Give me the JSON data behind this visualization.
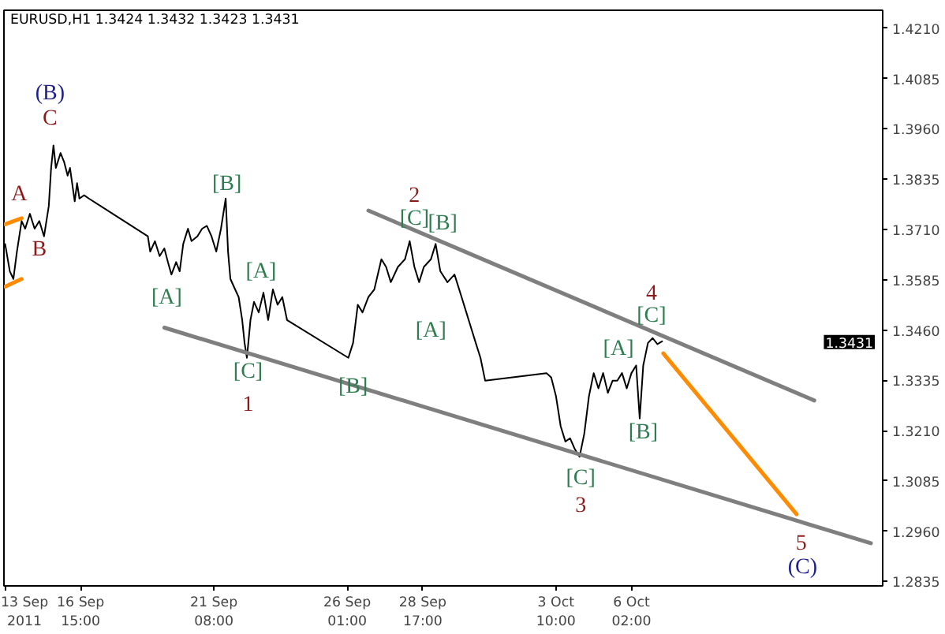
{
  "chart_data": {
    "type": "line",
    "title": "EURUSD,H1  1.3424 1.3432 1.3423 1.3431",
    "xlim": [
      "2011-09-13T22:00",
      "2011-10-14T23:00"
    ],
    "ylim": [
      1.2824,
      1.4255
    ],
    "xticks": [
      {
        "value": "2011-09-13T23:00",
        "label": "13 Sep 2011"
      },
      {
        "value": "2011-09-16T15:00",
        "label": "16 Sep 15:00"
      },
      {
        "value": "2011-09-21T08:00",
        "label": "21 Sep 08:00"
      },
      {
        "value": "2011-09-26T01:00",
        "label": "26 Sep 01:00"
      },
      {
        "value": "2011-09-28T17:00",
        "label": "28 Sep 17:00"
      },
      {
        "value": "2011-10-03T10:00",
        "label": "3 Oct 10:00"
      },
      {
        "value": "2011-10-06T02:00",
        "label": "6 Oct 02:00"
      }
    ],
    "yticks": [
      {
        "value": 1.421,
        "label": "1.4210"
      },
      {
        "value": 1.4085,
        "label": "1.4085"
      },
      {
        "value": 1.396,
        "label": "1.3960"
      },
      {
        "value": 1.3835,
        "label": "1.3835"
      },
      {
        "value": 1.371,
        "label": "1.3710"
      },
      {
        "value": 1.3585,
        "label": "1.3585"
      },
      {
        "value": 1.346,
        "label": "1.3460"
      },
      {
        "value": 1.3335,
        "label": "1.3335"
      },
      {
        "value": 1.321,
        "label": "1.3210"
      },
      {
        "value": 1.3085,
        "label": "1.3085"
      },
      {
        "value": 1.296,
        "label": "1.2960"
      },
      {
        "value": 1.2835,
        "label": "1.2835"
      }
    ],
    "series": [
      {
        "color": "#000000",
        "x": [
          "2011-09-13T23:00",
          "2011-09-14T03:00",
          "2011-09-14T06:00",
          "2011-09-14T09:00",
          "2011-09-14T13:00",
          "2011-09-14T16:00",
          "2011-09-14T20:00",
          "2011-09-15T00:00",
          "2011-09-15T04:00",
          "2011-09-15T08:00",
          "2011-09-15T12:00",
          "2011-09-15T14:00",
          "2011-09-15T16:00",
          "2011-09-15T18:00",
          "2011-09-15T22:00",
          "2011-09-16T01:00",
          "2011-09-16T04:00",
          "2011-09-16T06:00",
          "2011-09-16T10:00",
          "2011-09-16T12:00",
          "2011-09-16T14:00",
          "2011-09-16T18:00",
          "2011-09-16T22:00",
          "2011-09-19T00:00",
          "2011-09-19T02:00",
          "2011-09-19T06:00",
          "2011-09-19T10:00",
          "2011-09-19T14:00",
          "2011-09-19T17:00",
          "2011-09-19T20:00",
          "2011-09-20T00:00",
          "2011-09-20T03:00",
          "2011-09-20T06:00",
          "2011-09-20T10:00",
          "2011-09-20T13:00",
          "2011-09-20T18:00",
          "2011-09-20T22:00",
          "2011-09-21T02:00",
          "2011-09-21T06:00",
          "2011-09-21T10:00",
          "2011-09-21T14:00",
          "2011-09-21T18:00",
          "2011-09-21T20:00",
          "2011-09-21T22:00",
          "2011-09-22T02:00",
          "2011-09-22T05:00",
          "2011-09-22T08:00",
          "2011-09-22T10:00",
          "2011-09-22T12:00",
          "2011-09-22T15:00",
          "2011-09-22T18:00",
          "2011-09-22T22:00",
          "2011-09-23T02:00",
          "2011-09-23T06:00",
          "2011-09-23T10:00",
          "2011-09-23T14:00",
          "2011-09-23T18:00",
          "2011-09-23T22:00",
          "2011-09-26T02:00",
          "2011-09-26T06:00",
          "2011-09-26T10:00",
          "2011-09-26T14:00",
          "2011-09-26T19:00",
          "2011-09-27T00:00",
          "2011-09-27T06:00",
          "2011-09-27T10:00",
          "2011-09-27T14:00",
          "2011-09-27T20:00",
          "2011-09-28T02:00",
          "2011-09-28T06:00",
          "2011-09-28T10:00",
          "2011-09-28T14:00",
          "2011-09-28T18:00",
          "2011-09-29T00:00",
          "2011-09-29T04:00",
          "2011-09-29T08:00",
          "2011-09-29T14:00",
          "2011-09-29T20:00",
          "2011-09-30T02:00",
          "2011-09-30T06:00",
          "2011-09-30T10:00",
          "2011-09-30T14:00",
          "2011-09-30T18:00",
          "2011-09-30T22:00",
          "2011-10-03T02:00",
          "2011-10-03T06:00",
          "2011-10-03T10:00",
          "2011-10-03T14:00",
          "2011-10-03T18:00",
          "2011-10-03T22:00",
          "2011-10-04T02:00",
          "2011-10-04T06:00",
          "2011-10-04T10:00",
          "2011-10-04T14:00",
          "2011-10-04T18:00",
          "2011-10-04T22:00",
          "2011-10-05T02:00",
          "2011-10-05T06:00",
          "2011-10-05T10:00",
          "2011-10-05T14:00",
          "2011-10-05T18:00",
          "2011-10-05T22:00",
          "2011-10-06T02:00",
          "2011-10-06T06:00",
          "2011-10-06T09:00",
          "2011-10-06T12:00",
          "2011-10-06T16:00",
          "2011-10-06T20:00",
          "2011-10-07T00:00",
          "2011-10-07T04:00"
        ],
        "values": [
          1.3674,
          1.3606,
          1.3587,
          1.3655,
          1.3731,
          1.3712,
          1.3749,
          1.3712,
          1.3731,
          1.3693,
          1.3768,
          1.3863,
          1.3919,
          1.3863,
          1.39,
          1.3878,
          1.3844,
          1.3863,
          1.378,
          1.3825,
          1.3787,
          1.3795,
          1.3787,
          1.3693,
          1.3655,
          1.3681,
          1.3644,
          1.3663,
          1.3629,
          1.3598,
          1.3629,
          1.3606,
          1.3674,
          1.3712,
          1.3681,
          1.3693,
          1.3712,
          1.3719,
          1.3693,
          1.3655,
          1.3712,
          1.3787,
          1.3655,
          1.3587,
          1.3561,
          1.3542,
          1.3485,
          1.3428,
          1.3391,
          1.3485,
          1.353,
          1.3504,
          1.3553,
          1.3485,
          1.3561,
          1.3523,
          1.3542,
          1.3485,
          1.3391,
          1.3428,
          1.3523,
          1.3504,
          1.3542,
          1.3561,
          1.3636,
          1.3617,
          1.3579,
          1.3617,
          1.3636,
          1.3681,
          1.3617,
          1.3579,
          1.3617,
          1.3636,
          1.3674,
          1.3606,
          1.3579,
          1.3598,
          1.3542,
          1.3504,
          1.3466,
          1.3428,
          1.3391,
          1.3334,
          1.3353,
          1.3342,
          1.3296,
          1.3221,
          1.3183,
          1.3191,
          1.3164,
          1.3145,
          1.3202,
          1.3296,
          1.3353,
          1.3315,
          1.3353,
          1.3304,
          1.3334,
          1.3334,
          1.3353,
          1.3315,
          1.3353,
          1.3372,
          1.324,
          1.3372,
          1.3428,
          1.344,
          1.3425,
          1.3432
        ]
      },
      {
        "color": "#7f7f7f",
        "x": [
          "2011-09-26T19:00",
          "2011-10-12T13:00"
        ],
        "values": [
          1.3757,
          1.3285
        ]
      },
      {
        "color": "#7f7f7f",
        "x": [
          "2011-09-19T14:00",
          "2011-10-14T13:00"
        ],
        "values": [
          1.3466,
          1.293
        ]
      },
      {
        "color": "#ff8c00",
        "x": [
          "2011-10-07T05:00",
          "2011-10-11T22:00"
        ],
        "values": [
          1.3402,
          1.3002
        ]
      },
      {
        "color": "#ff8c00",
        "x": [
          "2011-09-13T23:00",
          "2011-09-14T13:00"
        ],
        "values": [
          1.3723,
          1.3738
        ]
      },
      {
        "color": "#ff8c00",
        "x": [
          "2011-09-13T23:00",
          "2011-09-14T13:00"
        ],
        "values": [
          1.3568,
          1.3587
        ]
      }
    ],
    "annotations": [
      "(B)",
      "C",
      "A",
      "B",
      "[A]",
      "[B]",
      "[A]",
      "[C]",
      "1",
      "[B]",
      "2",
      "[C]",
      "[B]",
      "[A]",
      "[C]",
      "3",
      "[A]",
      "[B]",
      "4",
      "[C]",
      "5",
      "(C)",
      "1.3431"
    ]
  }
}
